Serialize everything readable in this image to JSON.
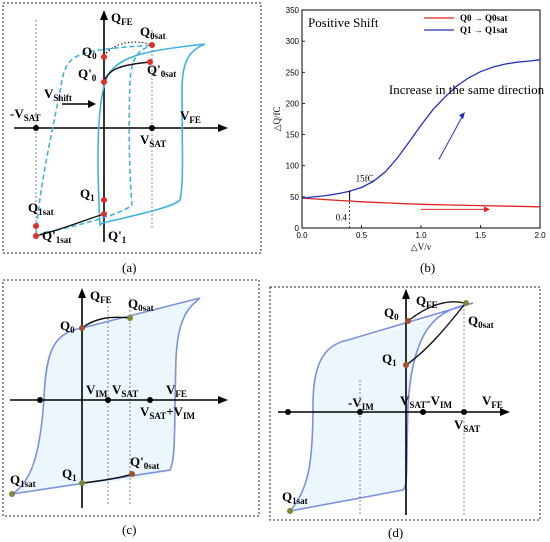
{
  "captions": {
    "a": "(a)",
    "b": "(b)",
    "c": "(c)",
    "d": "(d)"
  },
  "panel_a": {
    "q_fe": "Q",
    "q_fe_sub": "FE",
    "v_fe": "V",
    "v_fe_sub": "FE",
    "q0sat": "Q",
    "q0sat_sub": "0sat",
    "q0": "Q",
    "q0_sub": "0",
    "q0p": "Q'",
    "q0p_sub": "0",
    "q0psat": "Q'",
    "q0psat_sub": "0sat",
    "vshift": "V",
    "vshift_sub": "Shift",
    "neg_vsat": "-V",
    "neg_vsat_sub": "SAT",
    "vsat": "V",
    "vsat_sub": "SAT",
    "q1sat": "Q",
    "q1sat_sub": "1sat",
    "q1psat": "Q'",
    "q1psat_sub": "1sat",
    "q1": "Q",
    "q1_sub": "1",
    "q1p": "Q'",
    "q1p_sub": "1"
  },
  "panel_c": {
    "q_fe": "Q",
    "q_fe_sub": "FE",
    "q0sat": "Q",
    "q0sat_sub": "0sat",
    "q0": "Q",
    "q0_sub": "0",
    "vim": "V",
    "vim_sub": "IM",
    "vsat": "V",
    "vsat_sub": "SAT",
    "v_fe": "V",
    "v_fe_sub": "FE",
    "vsatvim": "V",
    "vsatvim_sub": "SAT",
    "vsatvim_plus": "+V",
    "vsatvim_sub2": "IM",
    "q1sat": "Q",
    "q1sat_sub": "1sat",
    "q1": "Q",
    "q1_sub": "1",
    "q0psat": "Q'",
    "q0psat_sub": "0sat"
  },
  "panel_d": {
    "q_fe": "Q",
    "q_fe_sub": "FE",
    "q0": "Q",
    "q0_sub": "0",
    "q0sat": "Q",
    "q0sat_sub": "0sat",
    "q1": "Q",
    "q1_sub": "1",
    "neg_vim": "-V",
    "neg_vim_sub": "IM",
    "vsatvim": "V",
    "vsatvim_sub": "SAT",
    "vsatvim_minus": "-V",
    "vsatvim_sub2": "IM",
    "v_fe": "V",
    "v_fe_sub": "FE",
    "vsat": "V",
    "vsat_sub": "SAT",
    "q1sat": "Q",
    "q1sat_sub": "1sat"
  },
  "chart_data": {
    "type": "line",
    "title": "Positive Shift",
    "annotation": "Increase in the same direction",
    "annotation_15fc": "15fC",
    "annotation_04": "0.4",
    "xlabel": "△V/v",
    "ylabel": "△Q/fC",
    "xlim": [
      0,
      2.0
    ],
    "ylim": [
      0,
      350
    ],
    "xticks": [
      0.0,
      0.5,
      1.0,
      1.5,
      2.0
    ],
    "xtick_labels": [
      "0.0",
      "0.5",
      "1.0",
      "1.5",
      "2.0"
    ],
    "yticks": [
      0,
      50,
      100,
      150,
      200,
      250,
      300,
      350
    ],
    "ytick_labels": [
      "0",
      "50",
      "100",
      "150",
      "200",
      "250",
      "300",
      "350"
    ],
    "legend_position": "top-right",
    "series": [
      {
        "name": "Q0→Q0sat",
        "legend_a": "Q0",
        "legend_arrow": "→",
        "legend_b": "Q0sat",
        "color": "#e02424",
        "x": [
          0,
          0.25,
          0.5,
          0.75,
          1.0,
          1.25,
          1.5,
          1.75,
          2.0
        ],
        "y": [
          48,
          45,
          42,
          40,
          38,
          37,
          36,
          35,
          34
        ]
      },
      {
        "name": "Q1→Q1sat",
        "legend_a": "Q1",
        "legend_arrow": "→",
        "legend_b": "Q1sat",
        "color": "#2233bb",
        "x": [
          0,
          0.1,
          0.2,
          0.3,
          0.4,
          0.5,
          0.6,
          0.7,
          0.8,
          0.9,
          1.0,
          1.1,
          1.2,
          1.3,
          1.4,
          1.5,
          1.6,
          1.7,
          1.8,
          1.9,
          2.0
        ],
        "y": [
          48,
          50,
          52,
          55,
          59,
          65,
          75,
          90,
          112,
          138,
          165,
          190,
          210,
          228,
          241,
          251,
          258,
          263,
          266,
          268,
          270
        ]
      }
    ]
  }
}
